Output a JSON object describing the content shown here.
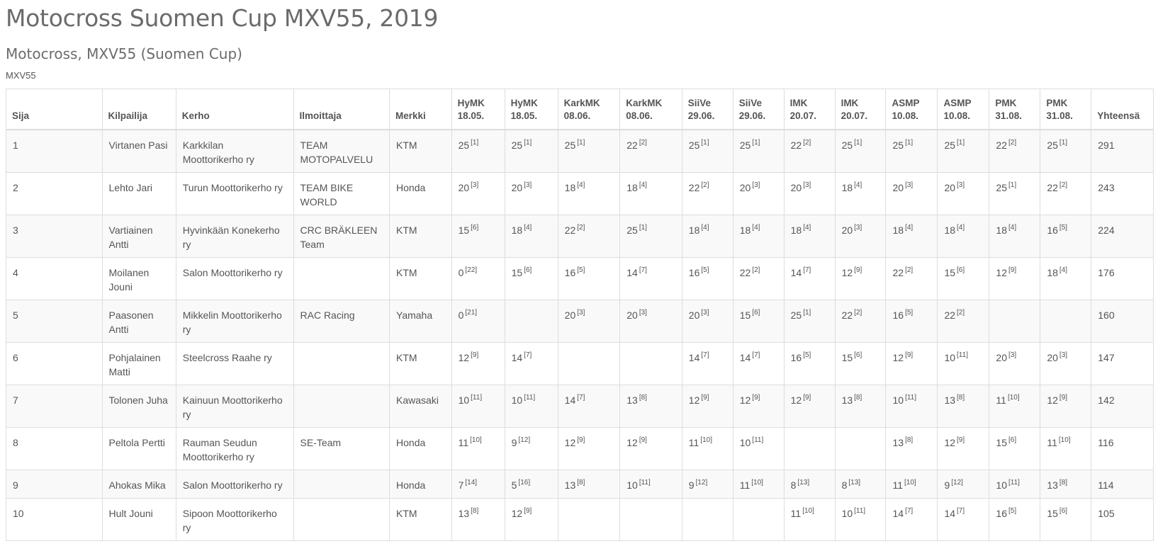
{
  "title": "Motocross Suomen Cup MXV55, 2019",
  "subtitle": "Motocross, MXV55 (Suomen Cup)",
  "class_label": "MXV55",
  "headers": {
    "sija": "Sija",
    "kilpailija": "Kilpailija",
    "kerho": "Kerho",
    "ilmoittaja": "Ilmoittaja",
    "merkki": "Merkki",
    "yhteensa": "Yhteensä"
  },
  "events": [
    {
      "name": "HyMK",
      "date": "18.05."
    },
    {
      "name": "HyMK",
      "date": "18.05."
    },
    {
      "name": "KarkMK",
      "date": "08.06."
    },
    {
      "name": "KarkMK",
      "date": "08.06."
    },
    {
      "name": "SiiVe",
      "date": "29.06."
    },
    {
      "name": "SiiVe",
      "date": "29.06."
    },
    {
      "name": "IMK",
      "date": "20.07."
    },
    {
      "name": "IMK",
      "date": "20.07."
    },
    {
      "name": "ASMP",
      "date": "10.08."
    },
    {
      "name": "ASMP",
      "date": "10.08."
    },
    {
      "name": "PMK",
      "date": "31.08."
    },
    {
      "name": "PMK",
      "date": "31.08."
    }
  ],
  "rows": [
    {
      "sija": "1",
      "kilpailija": "Virtanen Pasi",
      "kerho": "Karkkilan Moottorikerho ry",
      "ilmoittaja": "TEAM MOTOPALVELU",
      "merkki": "KTM",
      "results": [
        [
          "25",
          "[1]"
        ],
        [
          "25",
          "[1]"
        ],
        [
          "25",
          "[1]"
        ],
        [
          "22",
          "[2]"
        ],
        [
          "25",
          "[1]"
        ],
        [
          "25",
          "[1]"
        ],
        [
          "22",
          "[2]"
        ],
        [
          "25",
          "[1]"
        ],
        [
          "25",
          "[1]"
        ],
        [
          "25",
          "[1]"
        ],
        [
          "22",
          "[2]"
        ],
        [
          "25",
          "[1]"
        ]
      ],
      "total": "291"
    },
    {
      "sija": "2",
      "kilpailija": "Lehto Jari",
      "kerho": "Turun Moottorikerho ry",
      "ilmoittaja": "TEAM BIKE WORLD",
      "merkki": "Honda",
      "results": [
        [
          "20",
          "[3]"
        ],
        [
          "20",
          "[3]"
        ],
        [
          "18",
          "[4]"
        ],
        [
          "18",
          "[4]"
        ],
        [
          "22",
          "[2]"
        ],
        [
          "20",
          "[3]"
        ],
        [
          "20",
          "[3]"
        ],
        [
          "18",
          "[4]"
        ],
        [
          "20",
          "[3]"
        ],
        [
          "20",
          "[3]"
        ],
        [
          "25",
          "[1]"
        ],
        [
          "22",
          "[2]"
        ]
      ],
      "total": "243"
    },
    {
      "sija": "3",
      "kilpailija": "Vartiainen Antti",
      "kerho": "Hyvinkään Konekerho ry",
      "ilmoittaja": "CRC BRÄKLEEN Team",
      "merkki": "KTM",
      "results": [
        [
          "15",
          "[6]"
        ],
        [
          "18",
          "[4]"
        ],
        [
          "22",
          "[2]"
        ],
        [
          "25",
          "[1]"
        ],
        [
          "18",
          "[4]"
        ],
        [
          "18",
          "[4]"
        ],
        [
          "18",
          "[4]"
        ],
        [
          "20",
          "[3]"
        ],
        [
          "18",
          "[4]"
        ],
        [
          "18",
          "[4]"
        ],
        [
          "18",
          "[4]"
        ],
        [
          "16",
          "[5]"
        ]
      ],
      "total": "224"
    },
    {
      "sija": "4",
      "kilpailija": "Moilanen Jouni",
      "kerho": "Salon Moottorikerho ry",
      "ilmoittaja": "",
      "merkki": "KTM",
      "results": [
        [
          "0",
          "[22]"
        ],
        [
          "15",
          "[6]"
        ],
        [
          "16",
          "[5]"
        ],
        [
          "14",
          "[7]"
        ],
        [
          "16",
          "[5]"
        ],
        [
          "22",
          "[2]"
        ],
        [
          "14",
          "[7]"
        ],
        [
          "12",
          "[9]"
        ],
        [
          "22",
          "[2]"
        ],
        [
          "15",
          "[6]"
        ],
        [
          "12",
          "[9]"
        ],
        [
          "18",
          "[4]"
        ]
      ],
      "total": "176"
    },
    {
      "sija": "5",
      "kilpailija": "Paasonen Antti",
      "kerho": "Mikkelin Moottorikerho ry",
      "ilmoittaja": "RAC Racing",
      "merkki": "Yamaha",
      "results": [
        [
          "0",
          "[21]"
        ],
        [
          "",
          ""
        ],
        [
          "20",
          "[3]"
        ],
        [
          "20",
          "[3]"
        ],
        [
          "20",
          "[3]"
        ],
        [
          "15",
          "[6]"
        ],
        [
          "25",
          "[1]"
        ],
        [
          "22",
          "[2]"
        ],
        [
          "16",
          "[5]"
        ],
        [
          "22",
          "[2]"
        ],
        [
          "",
          ""
        ],
        [
          "",
          ""
        ]
      ],
      "total": "160"
    },
    {
      "sija": "6",
      "kilpailija": "Pohjalainen Matti",
      "kerho": "Steelcross Raahe ry",
      "ilmoittaja": "",
      "merkki": "KTM",
      "results": [
        [
          "12",
          "[9]"
        ],
        [
          "14",
          "[7]"
        ],
        [
          "",
          ""
        ],
        [
          "",
          ""
        ],
        [
          "14",
          "[7]"
        ],
        [
          "14",
          "[7]"
        ],
        [
          "16",
          "[5]"
        ],
        [
          "15",
          "[6]"
        ],
        [
          "12",
          "[9]"
        ],
        [
          "10",
          "[11]"
        ],
        [
          "20",
          "[3]"
        ],
        [
          "20",
          "[3]"
        ]
      ],
      "total": "147"
    },
    {
      "sija": "7",
      "kilpailija": "Tolonen Juha",
      "kerho": "Kainuun Moottorikerho ry",
      "ilmoittaja": "",
      "merkki": "Kawasaki",
      "results": [
        [
          "10",
          "[11]"
        ],
        [
          "10",
          "[11]"
        ],
        [
          "14",
          "[7]"
        ],
        [
          "13",
          "[8]"
        ],
        [
          "12",
          "[9]"
        ],
        [
          "12",
          "[9]"
        ],
        [
          "12",
          "[9]"
        ],
        [
          "13",
          "[8]"
        ],
        [
          "10",
          "[11]"
        ],
        [
          "13",
          "[8]"
        ],
        [
          "11",
          "[10]"
        ],
        [
          "12",
          "[9]"
        ]
      ],
      "total": "142"
    },
    {
      "sija": "8",
      "kilpailija": "Peltola Pertti",
      "kerho": "Rauman Seudun Moottorikerho ry",
      "ilmoittaja": "SE-Team",
      "merkki": "Honda",
      "results": [
        [
          "11",
          "[10]"
        ],
        [
          "9",
          "[12]"
        ],
        [
          "12",
          "[9]"
        ],
        [
          "12",
          "[9]"
        ],
        [
          "11",
          "[10]"
        ],
        [
          "10",
          "[11]"
        ],
        [
          "",
          ""
        ],
        [
          "",
          ""
        ],
        [
          "13",
          "[8]"
        ],
        [
          "12",
          "[9]"
        ],
        [
          "15",
          "[6]"
        ],
        [
          "11",
          "[10]"
        ]
      ],
      "total": "116"
    },
    {
      "sija": "9",
      "kilpailija": "Ahokas Mika",
      "kerho": "Salon Moottorikerho ry",
      "ilmoittaja": "",
      "merkki": "Honda",
      "results": [
        [
          "7",
          "[14]"
        ],
        [
          "5",
          "[16]"
        ],
        [
          "13",
          "[8]"
        ],
        [
          "10",
          "[11]"
        ],
        [
          "9",
          "[12]"
        ],
        [
          "11",
          "[10]"
        ],
        [
          "8",
          "[13]"
        ],
        [
          "8",
          "[13]"
        ],
        [
          "11",
          "[10]"
        ],
        [
          "9",
          "[12]"
        ],
        [
          "10",
          "[11]"
        ],
        [
          "13",
          "[8]"
        ]
      ],
      "total": "114"
    },
    {
      "sija": "10",
      "kilpailija": "Hult Jouni",
      "kerho": "Sipoon Moottorikerho ry",
      "ilmoittaja": "",
      "merkki": "KTM",
      "results": [
        [
          "13",
          "[8]"
        ],
        [
          "12",
          "[9]"
        ],
        [
          "",
          ""
        ],
        [
          "",
          ""
        ],
        [
          "",
          ""
        ],
        [
          "",
          ""
        ],
        [
          "11",
          "[10]"
        ],
        [
          "10",
          "[11]"
        ],
        [
          "14",
          "[7]"
        ],
        [
          "14",
          "[7]"
        ],
        [
          "16",
          "[5]"
        ],
        [
          "15",
          "[6]"
        ]
      ],
      "total": "105"
    }
  ]
}
